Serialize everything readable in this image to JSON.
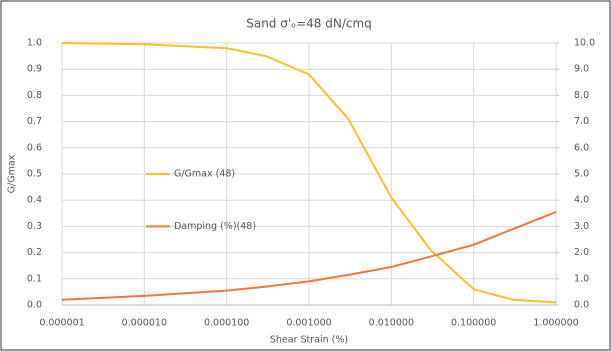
{
  "chart_data": {
    "type": "line",
    "title": "Sand σ'ₒ=48 dN/cmq",
    "x_label": "Shear Strain (%)",
    "y_label": "G/Gmax",
    "log_x": true,
    "grid": true,
    "legend": "left",
    "xlim": [
      1e-06,
      1
    ],
    "xticks": [
      {
        "value": 1e-06,
        "label": "0.000001"
      },
      {
        "value": 1e-05,
        "label": "0.000010"
      },
      {
        "value": 0.0001,
        "label": "0.000100"
      },
      {
        "value": 0.001,
        "label": "0.001000"
      },
      {
        "value": 0.01,
        "label": "0.010000"
      },
      {
        "value": 0.1,
        "label": "0.100000"
      },
      {
        "value": 1,
        "label": "1.000000"
      }
    ],
    "ylim": [
      0,
      1
    ],
    "yticks": [
      {
        "value": 0,
        "label": "0.0"
      },
      0.1,
      0.2,
      0.3,
      0.4,
      0.5,
      0.6,
      0.7,
      0.8,
      0.9,
      {
        "value": 1,
        "label": "1.0"
      }
    ],
    "y2lim": [
      0,
      10
    ],
    "y2ticks": [
      {
        "value": 0,
        "label": "0.0"
      },
      {
        "value": 1,
        "label": "1.0"
      },
      {
        "value": 2,
        "label": "2.0"
      },
      {
        "value": 3,
        "label": "3.0"
      },
      {
        "value": 4,
        "label": "4.0"
      },
      {
        "value": 5,
        "label": "5.0"
      },
      {
        "value": 6,
        "label": "6.0"
      },
      {
        "value": 7,
        "label": "7.0"
      },
      {
        "value": 8,
        "label": "8.0"
      },
      {
        "value": 9,
        "label": "9.0"
      },
      {
        "value": 10,
        "label": "10.0"
      }
    ],
    "x": [
      1e-06,
      1e-05,
      0.0001,
      0.0003,
      0.001,
      0.003,
      0.01,
      0.03,
      0.1,
      0.3,
      1
    ],
    "series": [
      {
        "name": "G/Gmax (48)",
        "color": "#f5c02a",
        "values": [
          1.0,
          0.995,
          0.98,
          0.95,
          0.88,
          0.71,
          0.41,
          0.21,
          0.06,
          0.02,
          0.01
        ]
      },
      {
        "name": "Damping (%)(48)",
        "color": "#e8793a",
        "axis": "y2",
        "values": [
          0.2,
          0.35,
          0.55,
          0.7,
          0.9,
          1.15,
          1.45,
          1.85,
          2.3,
          2.9,
          3.55
        ]
      }
    ]
  }
}
